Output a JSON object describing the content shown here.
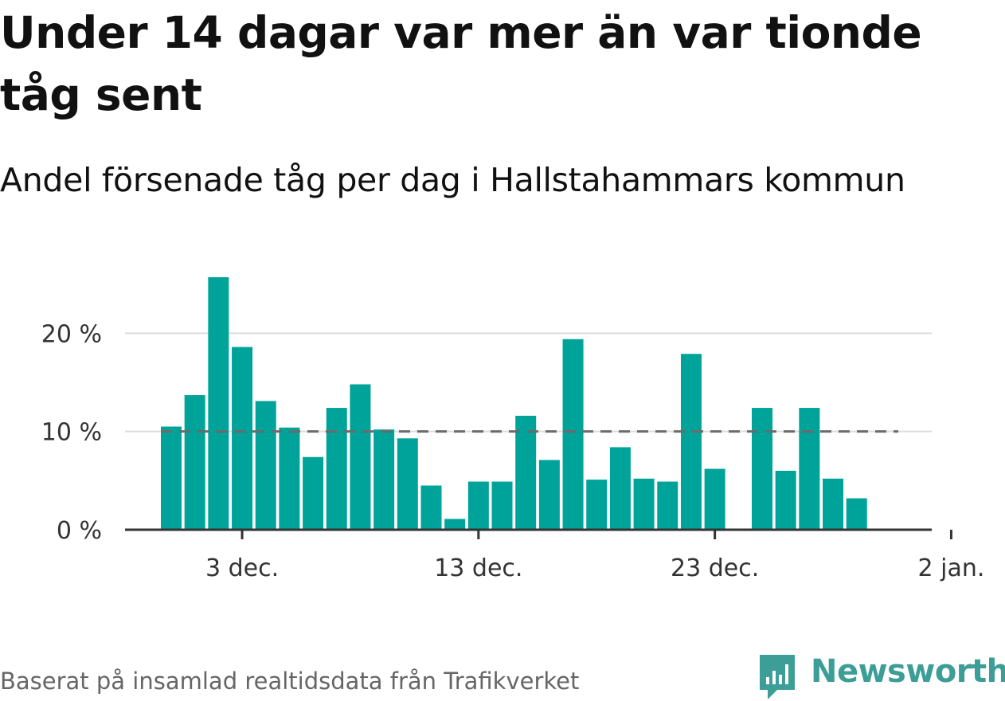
{
  "title": "Under 14 dagar var mer än var tionde tåg sent",
  "subtitle": "Andel försenade tåg per dag i Hallstahammars kommun",
  "footer": "Baserat på insamlad realtidsdata från Trafikverket",
  "brand": {
    "name": "Newsworthy",
    "icon": "newsworthy-logo-icon",
    "color": "#3c9e97"
  },
  "chart_data": {
    "type": "bar",
    "x": [
      "2023-11-30",
      "2023-12-01",
      "2023-12-02",
      "2023-12-03",
      "2023-12-04",
      "2023-12-05",
      "2023-12-06",
      "2023-12-07",
      "2023-12-08",
      "2023-12-09",
      "2023-12-10",
      "2023-12-11",
      "2023-12-12",
      "2023-12-13",
      "2023-12-14",
      "2023-12-15",
      "2023-12-16",
      "2023-12-17",
      "2023-12-18",
      "2023-12-19",
      "2023-12-20",
      "2023-12-21",
      "2023-12-22",
      "2023-12-23",
      "2023-12-24",
      "2023-12-25",
      "2023-12-26",
      "2023-12-27",
      "2023-12-28",
      "2023-12-29",
      "2023-12-30",
      "2023-12-31"
    ],
    "values": [
      10.5,
      13.7,
      25.7,
      18.6,
      13.1,
      10.4,
      7.4,
      12.4,
      14.8,
      10.2,
      9.3,
      4.5,
      1.1,
      4.9,
      4.9,
      11.6,
      7.1,
      19.4,
      5.1,
      8.4,
      5.2,
      4.9,
      17.9,
      6.2,
      null,
      12.4,
      6.0,
      12.4,
      5.2,
      3.2,
      null,
      null
    ],
    "ylim": [
      0,
      27
    ],
    "yticks": [
      {
        "value": 0,
        "label": "0 %"
      },
      {
        "value": 10,
        "label": "10 %"
      },
      {
        "value": 20,
        "label": "20 %"
      }
    ],
    "xticks": [
      {
        "date": "2023-12-03",
        "label": "3 dec."
      },
      {
        "date": "2023-12-13",
        "label": "13 dec."
      },
      {
        "date": "2023-12-23",
        "label": "23 dec."
      },
      {
        "date": "2024-01-02",
        "label": "2 jan."
      }
    ],
    "reference_line": {
      "value": 10,
      "style": "dashed",
      "color": "#6b6b6b"
    },
    "bar_color": "#00a39a",
    "grid": true,
    "legend": false
  }
}
